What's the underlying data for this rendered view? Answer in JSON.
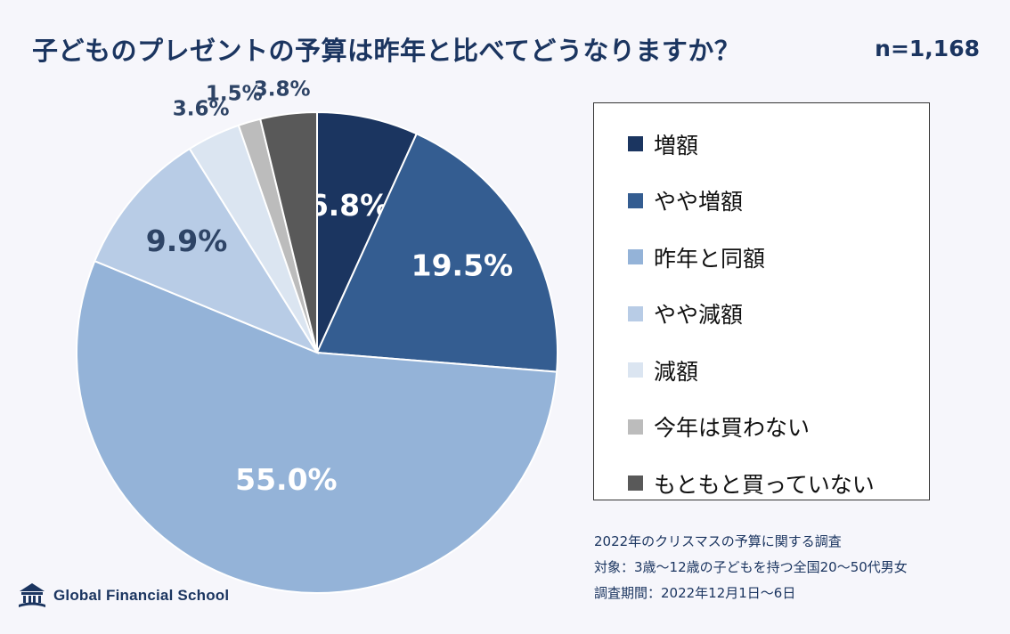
{
  "header": {
    "title": "子どものプレゼントの予算は昨年と比べてどうなりますか？",
    "sample_size": "n=1,168"
  },
  "chart_data": {
    "type": "pie",
    "slices": [
      {
        "label": "増額",
        "value": 6.8,
        "display": "6.8%",
        "color": "#1b3560"
      },
      {
        "label": "やや増額",
        "value": 19.5,
        "display": "19.5%",
        "color": "#345d91"
      },
      {
        "label": "昨年と同額",
        "value": 55.0,
        "display": "55.0%",
        "color": "#94b3d8"
      },
      {
        "label": "やや減額",
        "value": 9.9,
        "display": "9.9%",
        "color": "#b8cce6"
      },
      {
        "label": "減額",
        "value": 3.6,
        "display": "3.6%",
        "color": "#dbe5f1"
      },
      {
        "label": "今年は買わない",
        "value": 1.5,
        "display": "1.5%",
        "color": "#bcbcbc"
      },
      {
        "label": "もともと買っていない",
        "value": 3.8,
        "display": "3.8%",
        "color": "#595959"
      }
    ],
    "legend_placement": "right"
  },
  "notes": {
    "survey": "2022年のクリスマスの予算に関する調査",
    "target": "対象：3歳～12歳の子どもを持つ全国20～50代男女",
    "period": "調査期間：2022年12月1日～6日"
  },
  "logo": {
    "text": "Global Financial School",
    "icon": "school-building-icon"
  }
}
